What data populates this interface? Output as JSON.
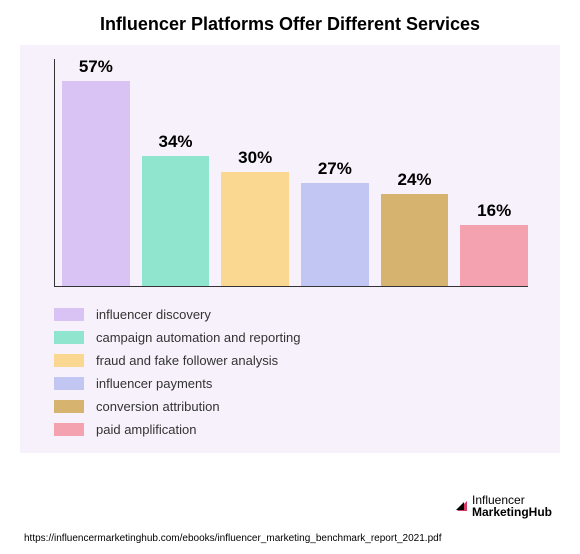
{
  "title": "Influencer Platforms Offer Different Services",
  "panel_background": "#f7f1fb",
  "axis_color": "#333333",
  "chart": {
    "type": "bar",
    "ymax": 60,
    "bars": [
      {
        "value": 57,
        "label": "57%",
        "color": "#d9c2f4"
      },
      {
        "value": 34,
        "label": "34%",
        "color": "#8fe5ce"
      },
      {
        "value": 30,
        "label": "30%",
        "color": "#fad891"
      },
      {
        "value": 27,
        "label": "27%",
        "color": "#c1c7f2"
      },
      {
        "value": 24,
        "label": "24%",
        "color": "#d6b36f"
      },
      {
        "value": 16,
        "label": "16%",
        "color": "#f4a2af"
      }
    ]
  },
  "legend": [
    {
      "color": "#d9c2f4",
      "label": "influencer discovery"
    },
    {
      "color": "#8fe5ce",
      "label": "campaign automation and reporting"
    },
    {
      "color": "#fad891",
      "label": "fraud and fake follower analysis"
    },
    {
      "color": "#c1c7f2",
      "label": "influencer payments"
    },
    {
      "color": "#d6b36f",
      "label": "conversion attribution"
    },
    {
      "color": "#f4a2af",
      "label": "paid amplification"
    }
  ],
  "logo": {
    "text_top": "Influencer",
    "text_bottom": "MarketingHub",
    "accent_color": "#d43b63"
  },
  "source": "https://influencermarketinghub.com/ebooks/influencer_marketing_benchmark_report_2021.pdf"
}
